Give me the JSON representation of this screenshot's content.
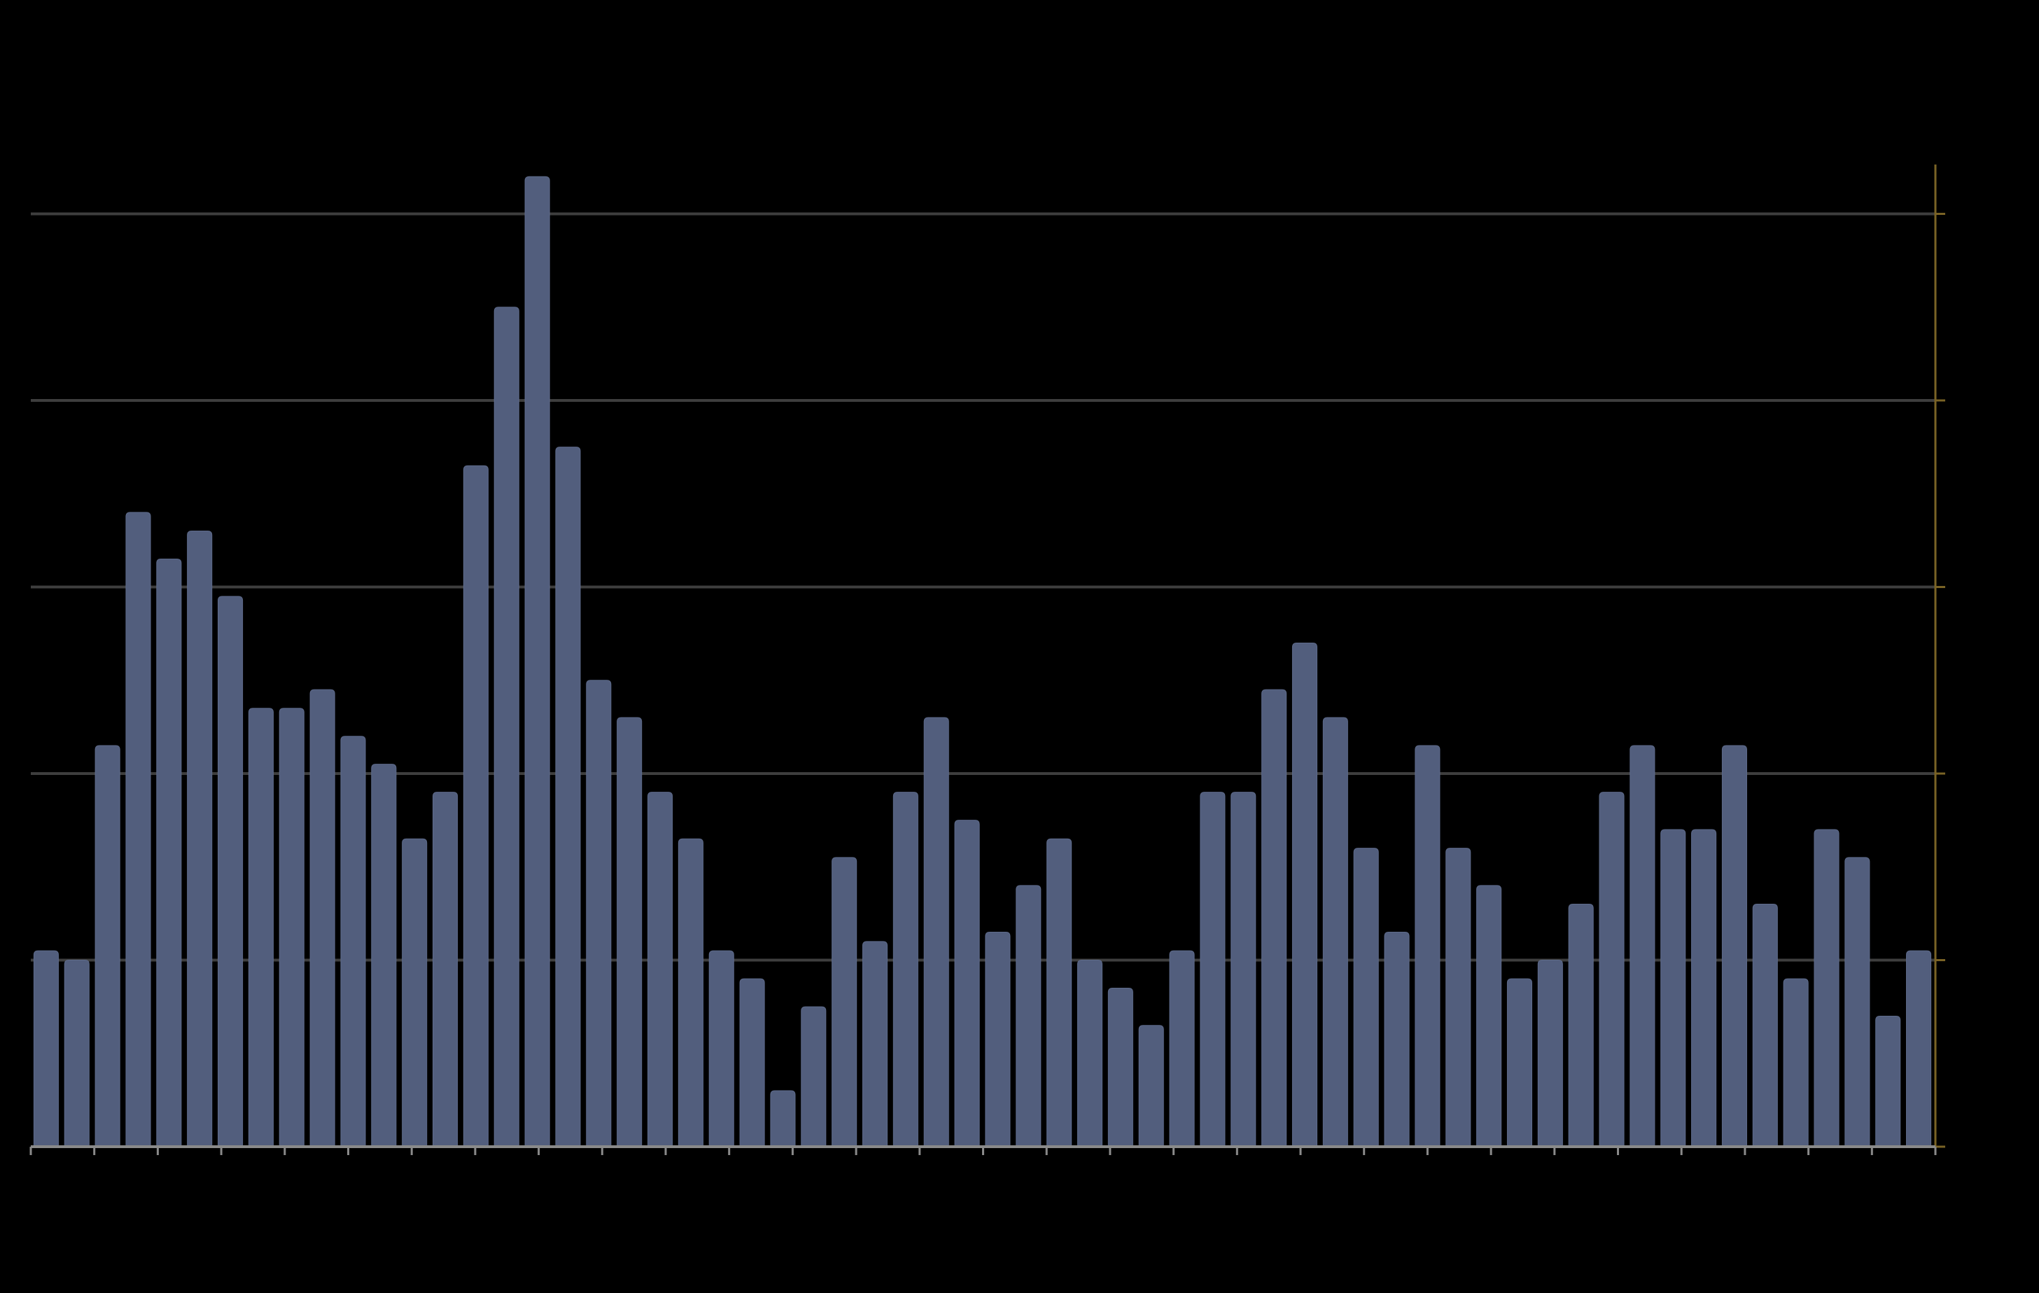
{
  "colors": {
    "background": "#000000",
    "bar_fill": "#525e7d",
    "bar_top": "#5d6a8a",
    "gridline": "#3e3e3e",
    "baseline": "#8a8a8a",
    "right_axis": "#7a6325"
  },
  "chart_data": {
    "type": "bar",
    "title": "",
    "xlabel": "",
    "ylabel": "",
    "ylim": [
      0,
      5.2
    ],
    "grid": true,
    "gridlines": [
      1,
      2,
      3,
      4,
      5
    ],
    "x_tick_count": 31,
    "right_axis_ticks": [
      0,
      1,
      2,
      3,
      4,
      5
    ],
    "values": [
      1.05,
      1.0,
      2.15,
      3.4,
      3.15,
      3.3,
      2.95,
      2.35,
      2.35,
      2.45,
      2.2,
      2.05,
      1.65,
      1.9,
      3.65,
      4.5,
      5.2,
      3.75,
      2.5,
      2.3,
      1.9,
      1.65,
      1.05,
      0.9,
      0.3,
      0.75,
      1.55,
      1.1,
      1.9,
      2.3,
      1.75,
      1.15,
      1.4,
      1.65,
      1.0,
      0.85,
      0.65,
      1.05,
      1.9,
      1.9,
      2.45,
      2.7,
      2.3,
      1.6,
      1.15,
      2.15,
      1.6,
      1.4,
      0.9,
      1.0,
      1.3,
      1.9,
      2.15,
      1.7,
      1.7,
      2.15,
      1.3,
      0.9,
      1.7,
      1.55,
      0.7,
      1.05
    ]
  }
}
